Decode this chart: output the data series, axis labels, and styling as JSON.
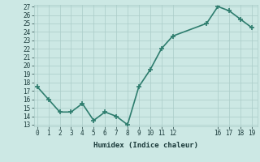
{
  "x": [
    0,
    1,
    2,
    3,
    4,
    5,
    6,
    7,
    8,
    9,
    10,
    11,
    12,
    15,
    16,
    17,
    18,
    19
  ],
  "y": [
    17.5,
    16.0,
    14.5,
    14.5,
    15.5,
    13.5,
    14.5,
    14.0,
    13.0,
    17.5,
    19.5,
    22.0,
    23.5,
    25.0,
    27.0,
    26.5,
    25.5,
    24.5
  ],
  "line_color": "#2e7d6e",
  "marker": "+",
  "marker_size": 4,
  "marker_lw": 1.2,
  "bg_color": "#cce8e4",
  "grid_color": "#aaccc8",
  "xlabel": "Humidex (Indice chaleur)",
  "ylim_min": 13,
  "ylim_max": 27,
  "xlim_min": -0.3,
  "xlim_max": 19.5,
  "yticks": [
    13,
    14,
    15,
    16,
    17,
    18,
    19,
    20,
    21,
    22,
    23,
    24,
    25,
    26,
    27
  ],
  "xticks": [
    0,
    1,
    2,
    3,
    4,
    5,
    6,
    7,
    8,
    9,
    10,
    11,
    12,
    16,
    17,
    18,
    19
  ],
  "label_color": "#1a3a3a",
  "tick_color": "#1a3a3a",
  "line_width": 1.2,
  "tick_fontsize": 5.5,
  "xlabel_fontsize": 6.5
}
